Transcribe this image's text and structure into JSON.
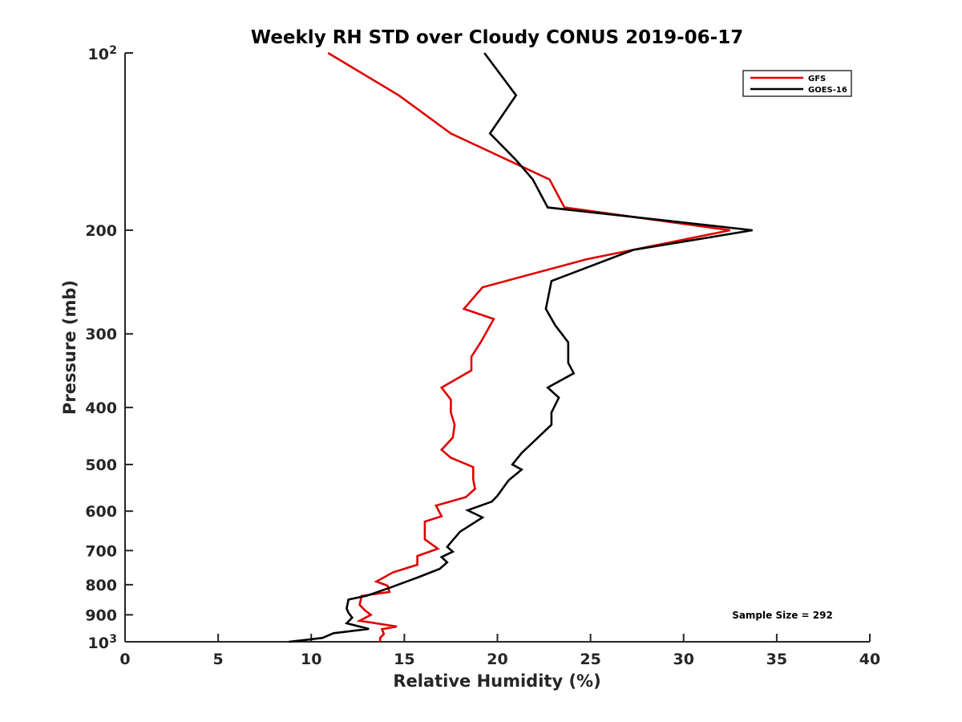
{
  "chart_data": {
    "type": "line",
    "title": "Weekly RH STD over Cloudy CONUS 2019-06-17",
    "xlabel": "Relative Humidity (%)",
    "ylabel": "Pressure (mb)",
    "xlim": [
      0,
      40
    ],
    "ylim": [
      100,
      1000
    ],
    "y_scale": "log",
    "y_reversed": true,
    "x_ticks": [
      0,
      5,
      10,
      15,
      20,
      25,
      30,
      35,
      40
    ],
    "y_ticks": [
      {
        "value": 100,
        "label": "10",
        "sup": "2"
      },
      {
        "value": 200,
        "label": "200",
        "sup": ""
      },
      {
        "value": 300,
        "label": "300",
        "sup": ""
      },
      {
        "value": 400,
        "label": "400",
        "sup": ""
      },
      {
        "value": 500,
        "label": "500",
        "sup": ""
      },
      {
        "value": 600,
        "label": "600",
        "sup": ""
      },
      {
        "value": 700,
        "label": "700",
        "sup": ""
      },
      {
        "value": 800,
        "label": "800",
        "sup": ""
      },
      {
        "value": 900,
        "label": "900",
        "sup": ""
      },
      {
        "value": 1000,
        "label": "10",
        "sup": "3"
      }
    ],
    "grid": false,
    "legend_position": "top-right",
    "annotation": "Sample Size = 292",
    "series": [
      {
        "name": "GFS",
        "color": "#e00000",
        "points": [
          [
            10.9,
            100
          ],
          [
            14.7,
            118
          ],
          [
            17.5,
            137
          ],
          [
            22.8,
            164
          ],
          [
            23.6,
            183
          ],
          [
            32.5,
            200
          ],
          [
            24.8,
            224
          ],
          [
            19.2,
            250
          ],
          [
            18.2,
            272
          ],
          [
            19.8,
            283
          ],
          [
            19.1,
            310
          ],
          [
            18.6,
            328
          ],
          [
            18.6,
            346
          ],
          [
            17.0,
            370
          ],
          [
            17.5,
            388
          ],
          [
            17.5,
            408
          ],
          [
            17.7,
            428
          ],
          [
            17.6,
            450
          ],
          [
            17.0,
            472
          ],
          [
            17.5,
            487
          ],
          [
            18.7,
            505
          ],
          [
            18.7,
            530
          ],
          [
            18.8,
            550
          ],
          [
            18.3,
            568
          ],
          [
            16.7,
            587
          ],
          [
            17.0,
            612
          ],
          [
            16.1,
            625
          ],
          [
            16.1,
            670
          ],
          [
            16.8,
            695
          ],
          [
            15.7,
            715
          ],
          [
            15.7,
            740
          ],
          [
            14.4,
            762
          ],
          [
            13.5,
            790
          ],
          [
            14.1,
            803
          ],
          [
            14.2,
            823
          ],
          [
            12.7,
            836
          ],
          [
            12.6,
            866
          ],
          [
            12.9,
            885
          ],
          [
            13.2,
            900
          ],
          [
            12.6,
            921
          ],
          [
            14.6,
            942
          ],
          [
            13.8,
            952
          ],
          [
            13.9,
            970
          ],
          [
            13.7,
            985
          ],
          [
            13.7,
            1000
          ]
        ]
      },
      {
        "name": "GOES-16",
        "color": "#000000",
        "points": [
          [
            19.3,
            100
          ],
          [
            21.0,
            118
          ],
          [
            19.6,
            137
          ],
          [
            21.0,
            152
          ],
          [
            21.9,
            164
          ],
          [
            22.7,
            183
          ],
          [
            33.7,
            200
          ],
          [
            27.3,
            216
          ],
          [
            22.9,
            244
          ],
          [
            22.6,
            272
          ],
          [
            23.1,
            290
          ],
          [
            23.8,
            310
          ],
          [
            23.8,
            336
          ],
          [
            24.1,
            350
          ],
          [
            22.7,
            370
          ],
          [
            23.3,
            385
          ],
          [
            22.9,
            408
          ],
          [
            22.9,
            428
          ],
          [
            21.3,
            478
          ],
          [
            20.8,
            500
          ],
          [
            21.3,
            510
          ],
          [
            20.6,
            532
          ],
          [
            20.0,
            565
          ],
          [
            19.7,
            578
          ],
          [
            18.4,
            598
          ],
          [
            19.2,
            615
          ],
          [
            18.0,
            650
          ],
          [
            17.6,
            672
          ],
          [
            17.3,
            690
          ],
          [
            17.6,
            703
          ],
          [
            17.0,
            718
          ],
          [
            17.3,
            733
          ],
          [
            16.9,
            752
          ],
          [
            15.7,
            778
          ],
          [
            14.2,
            810
          ],
          [
            13.0,
            835
          ],
          [
            12.0,
            848
          ],
          [
            11.9,
            878
          ],
          [
            12.0,
            893
          ],
          [
            12.2,
            910
          ],
          [
            11.9,
            930
          ],
          [
            13.1,
            951
          ],
          [
            11.2,
            967
          ],
          [
            10.6,
            985
          ],
          [
            8.8,
            1000
          ]
        ]
      }
    ]
  }
}
